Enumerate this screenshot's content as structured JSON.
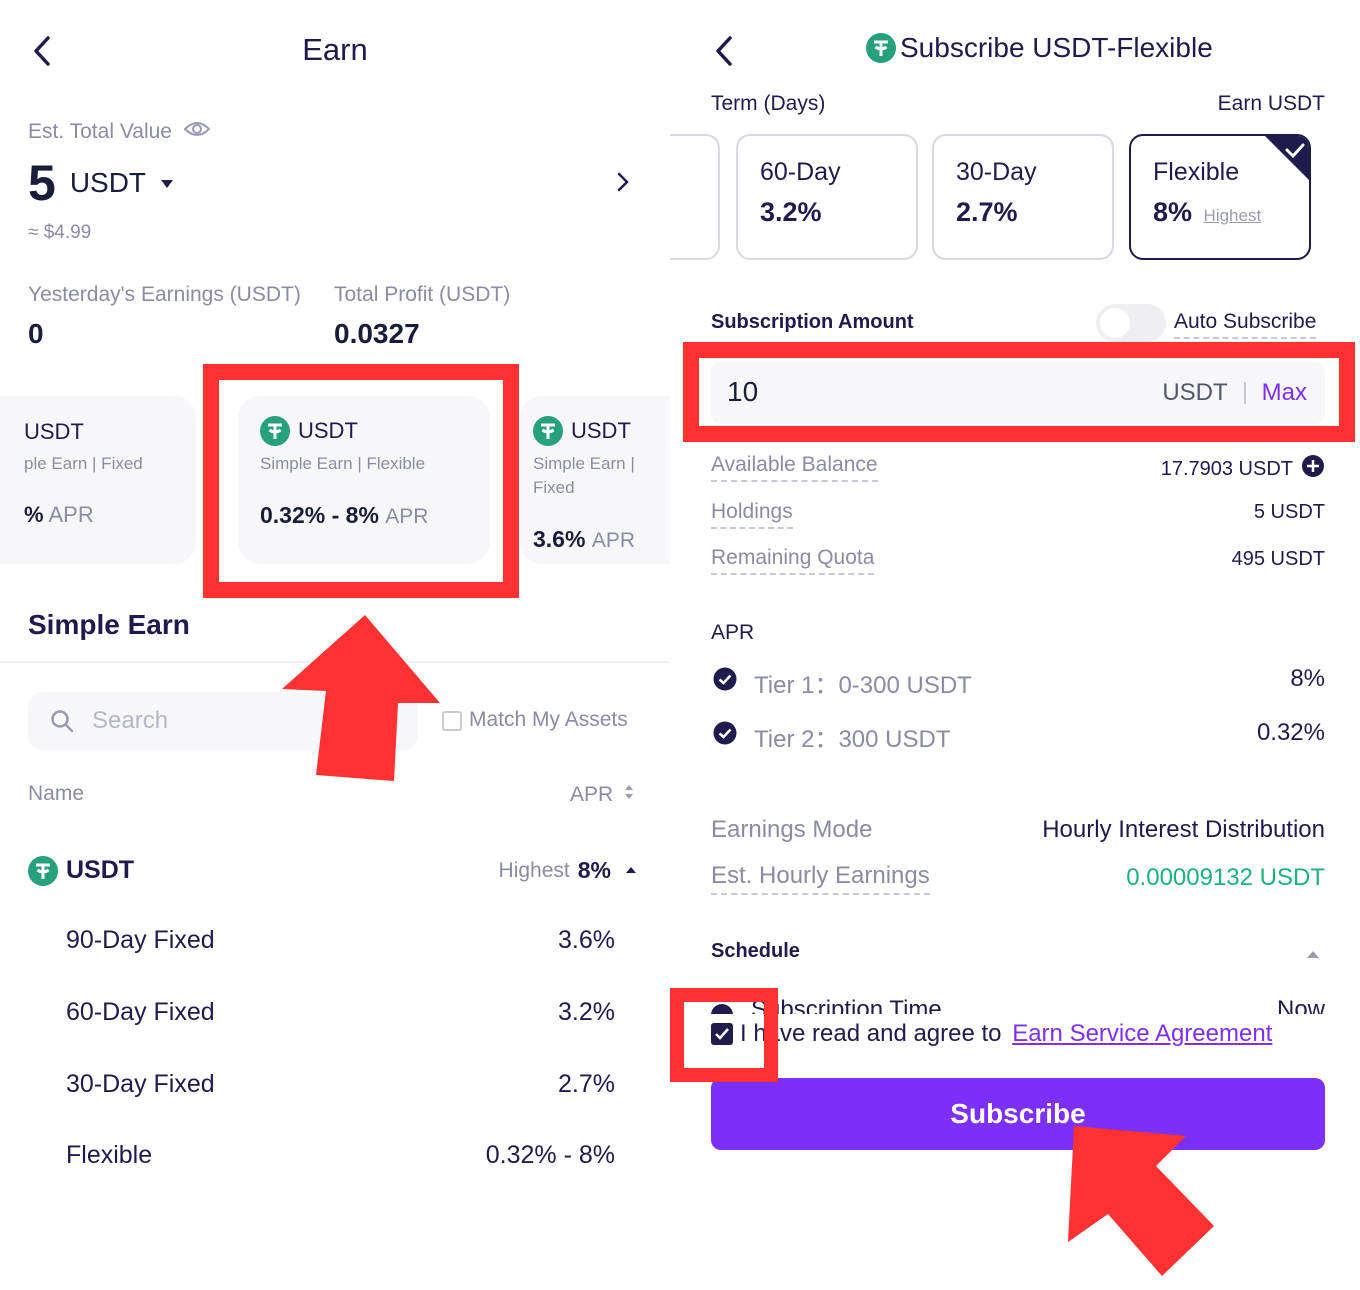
{
  "left": {
    "title": "Earn",
    "est_total_label": "Est. Total Value",
    "total_amount": "5",
    "total_unit": "USDT",
    "approx_value": "≈ $4.99",
    "yesterday_label": "Yesterday's Earnings (USDT)",
    "yesterday_value": "0",
    "profit_label": "Total Profit (USDT)",
    "profit_value": "0.0327",
    "cards": [
      {
        "coin": "USDT",
        "desc": "ple Earn | Fixed",
        "rate": "%",
        "apr": "APR"
      },
      {
        "coin": "USDT",
        "desc": "Simple Earn | Flexible",
        "rate": "0.32% - 8%",
        "apr": "APR"
      },
      {
        "coin": "USDT",
        "desc": "Simple Earn |",
        "desc2": "Fixed",
        "rate": "3.6%",
        "apr": "APR"
      }
    ],
    "section_title": "Simple Earn",
    "search_placeholder": "Search",
    "match_label": "Match My Assets",
    "col_name": "Name",
    "col_apr": "APR",
    "coin_row": {
      "name": "USDT",
      "highest_label": "Highest",
      "highest_value": "8%"
    },
    "products": [
      {
        "name": "90-Day Fixed",
        "apr": "3.6%"
      },
      {
        "name": "60-Day Fixed",
        "apr": "3.2%"
      },
      {
        "name": "30-Day Fixed",
        "apr": "2.7%"
      },
      {
        "name": "Flexible",
        "apr": "0.32% - 8%"
      }
    ]
  },
  "right": {
    "title": "Subscribe USDT-Flexible",
    "term_label": "Term (Days)",
    "earn_label": "Earn USDT",
    "terms": [
      {
        "name": "60-Day",
        "rate": "3.2%"
      },
      {
        "name": "30-Day",
        "rate": "2.7%"
      },
      {
        "name": "Flexible",
        "rate": "8%",
        "tag": "Highest"
      }
    ],
    "amount_label": "Subscription Amount",
    "auto_label": "Auto Subscribe",
    "amount_value": "10",
    "amount_unit": "USDT",
    "max_label": "Max",
    "avail_label": "Available Balance",
    "avail_value": "17.7903 USDT",
    "holdings_label": "Holdings",
    "holdings_value": "5 USDT",
    "quota_label": "Remaining Quota",
    "quota_value": "495 USDT",
    "apr_label": "APR",
    "tiers": [
      {
        "label": "Tier 1：0-300 USDT",
        "value": "8%"
      },
      {
        "label": "Tier 2：300 USDT",
        "value": "0.32%"
      }
    ],
    "mode_label": "Earnings Mode",
    "mode_value": "Hourly Interest Distribution",
    "hourly_label": "Est. Hourly Earnings",
    "hourly_value": "0.00009132 USDT",
    "schedule_label": "Schedule",
    "sub_time_label": "Subscription Time",
    "sub_time_value": "Now",
    "agree_text": "I have read and agree to",
    "agree_link": "Earn Service Agreement",
    "subscribe_label": "Subscribe"
  },
  "colors": {
    "accent": "#7b2ff7",
    "navy": "#1f1b4d",
    "green": "#1ab37b",
    "annotation": "#ff3131",
    "tether": "#26a17b"
  }
}
